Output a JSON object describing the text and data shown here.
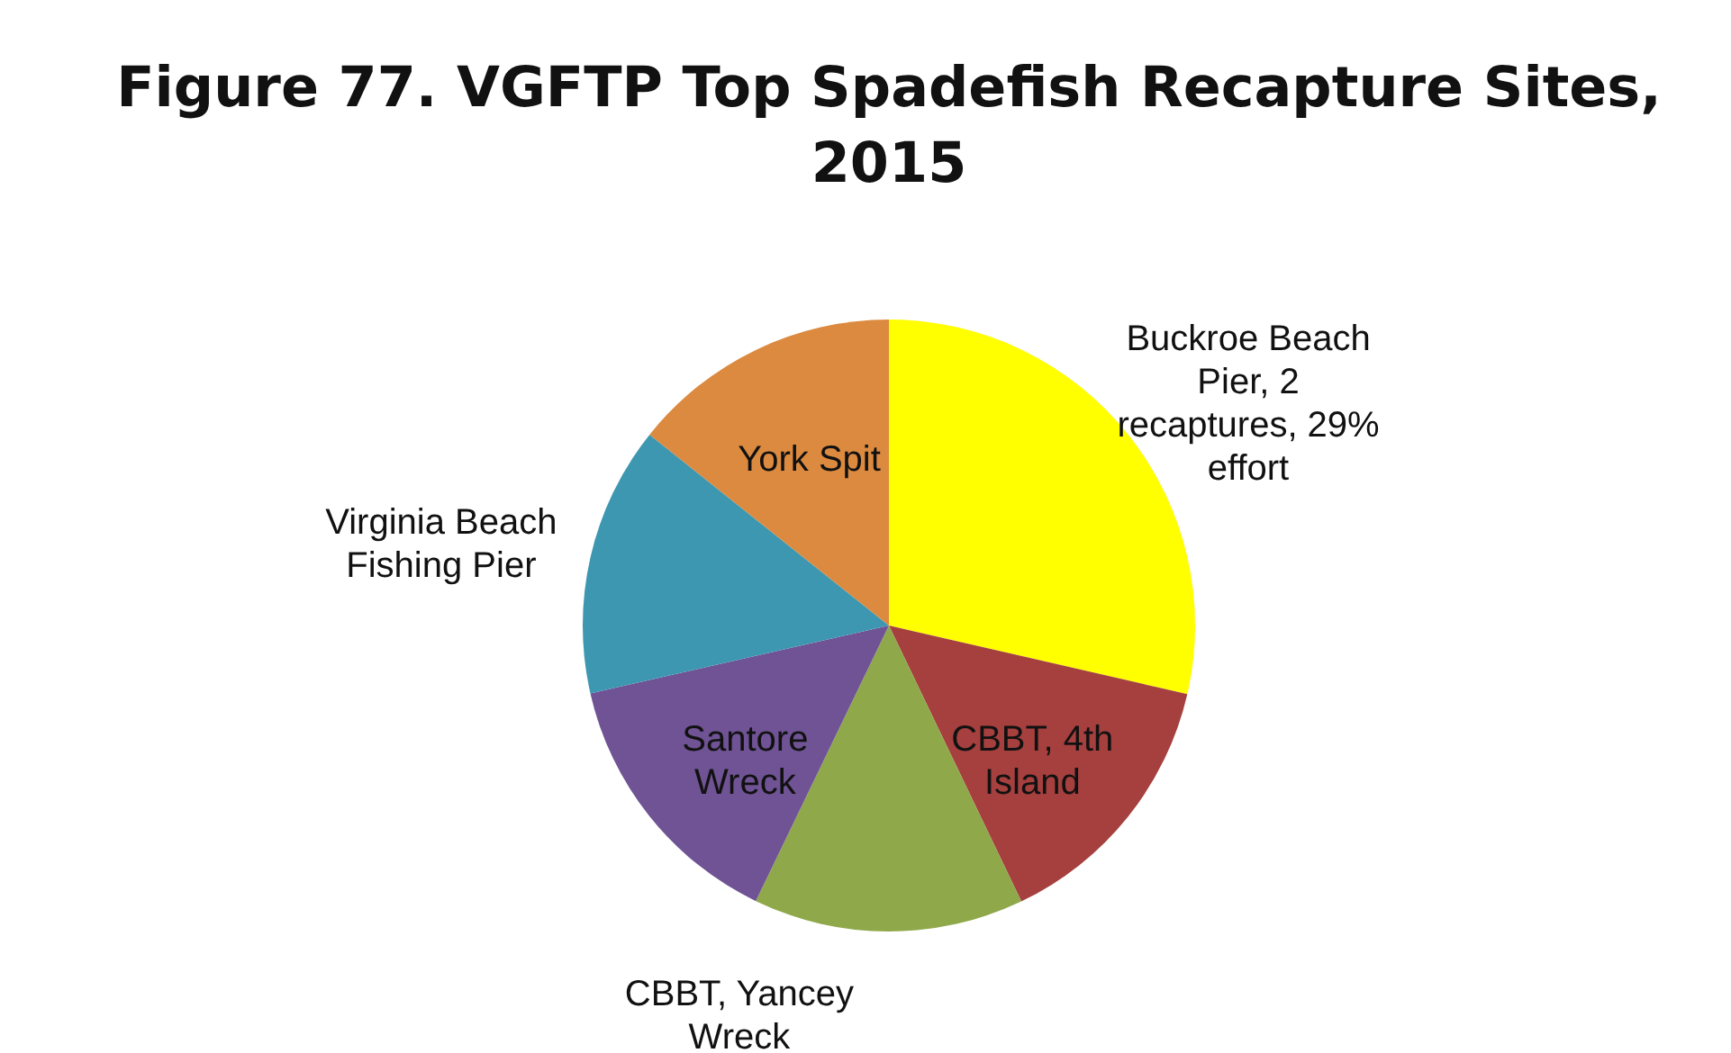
{
  "chart_data": {
    "type": "pie",
    "title": "Figure 77. VGFTP Top Spadefish Recapture Sites, 2015",
    "categories": [
      "Buckroe Beach Pier, 2 recaptures, 29% effort",
      "CBBT, 4th Island",
      "CBBT, Yancey Wreck",
      "Santore Wreck",
      "Virginia Beach Fishing Pier",
      "York Spit"
    ],
    "values": [
      28.6,
      14.28,
      14.28,
      14.28,
      14.28,
      14.28
    ],
    "colors": [
      "#ffff00",
      "#a5403f",
      "#8fa84a",
      "#6f5394",
      "#3d97b0",
      "#db8a3f"
    ]
  }
}
